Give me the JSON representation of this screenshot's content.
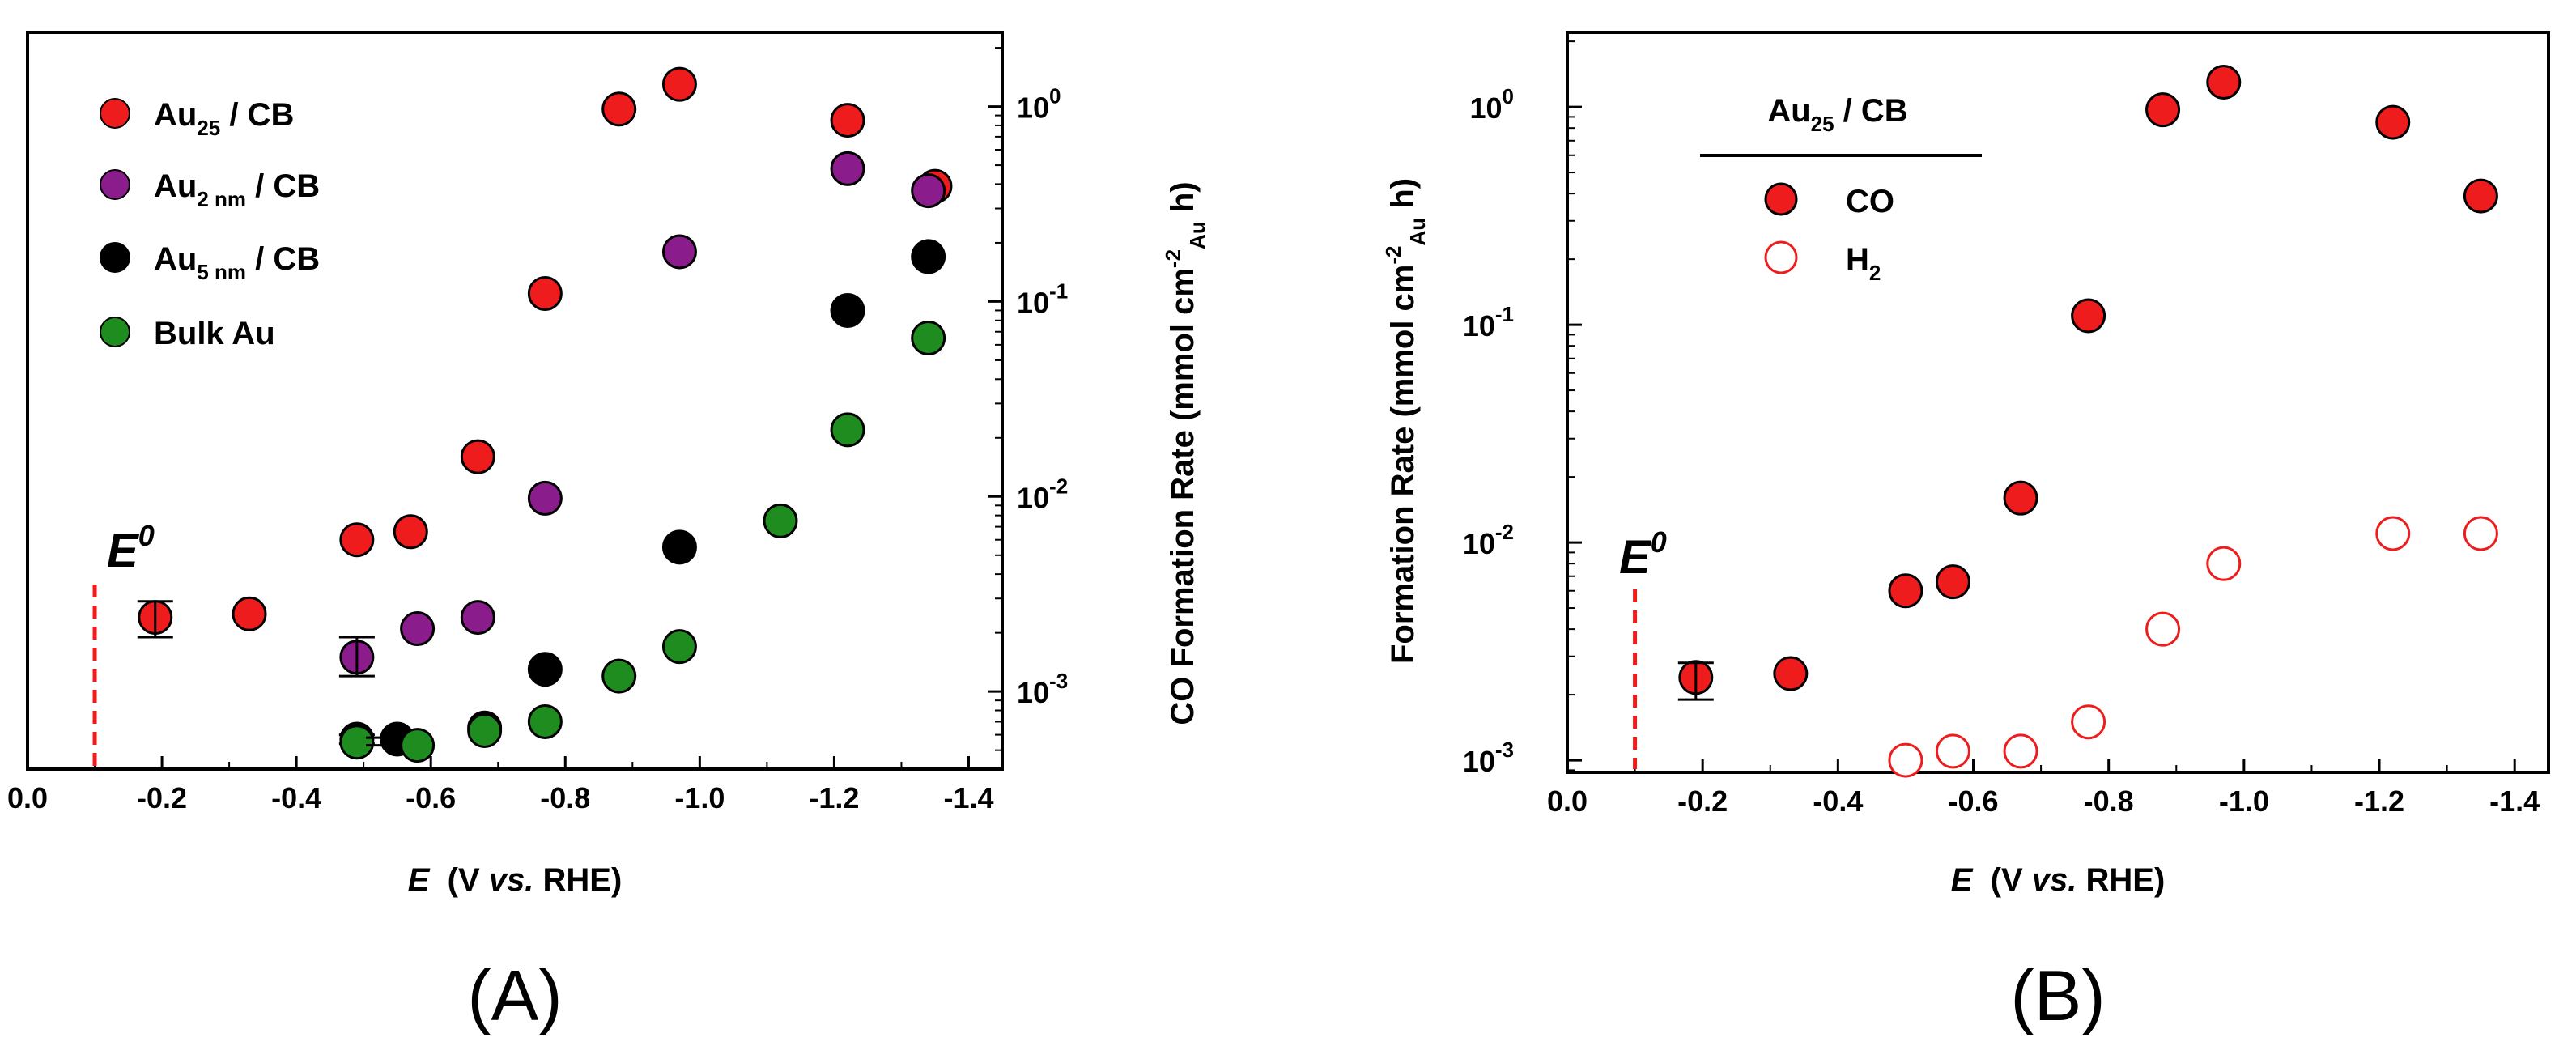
{
  "chart_data": [
    {
      "panel_label": "(A)",
      "type": "scatter",
      "xlabel_symbol": "E",
      "xlabel_rest": "(V ",
      "xlabel_vs": "vs.",
      "xlabel_end": " RHE)",
      "ylabel_right": "CO Formation Rate (mmol cm-2Au h)",
      "y_scale": "log",
      "xlim": [
        0.0,
        -1.45
      ],
      "ylim": [
        0.0004,
        2.4
      ],
      "x_ticks": [
        "0.0",
        "-0.2",
        "-0.4",
        "-0.6",
        "-0.8",
        "-1.0",
        "-1.2",
        "-1.4"
      ],
      "y_tick_labels": [
        {
          "base": "10",
          "exp": "-3",
          "value": 0.001
        },
        {
          "base": "10",
          "exp": "-2",
          "value": 0.01
        },
        {
          "base": "10",
          "exp": "-1",
          "value": 0.1
        },
        {
          "base": "10",
          "exp": "0",
          "value": 1
        }
      ],
      "e0_label": "E0",
      "e0_x": -0.1,
      "legend_location": "top-left",
      "series": [
        {
          "name": "Au25 / CB",
          "color": "#ee1c1c",
          "x": [
            -0.19,
            -0.33,
            -0.49,
            -0.57,
            -0.67,
            -0.77,
            -0.88,
            -0.97,
            -1.22,
            -1.35
          ],
          "y": [
            0.0024,
            0.0025,
            0.006,
            0.0066,
            0.016,
            0.11,
            0.97,
            1.3,
            0.85,
            0.39
          ],
          "error_points": [
            {
              "x": -0.19,
              "low": 0.0019,
              "high": 0.0029
            }
          ]
        },
        {
          "name": "Au2 nm / CB",
          "color": "#8a1c8c",
          "x": [
            -0.49,
            -0.58,
            -0.67,
            -0.77,
            -0.97,
            -1.22,
            -1.34
          ],
          "y": [
            0.0015,
            0.0021,
            0.0024,
            0.0098,
            0.18,
            0.48,
            0.37
          ],
          "error_points": [
            {
              "x": -0.49,
              "low": 0.0012,
              "high": 0.0019
            }
          ]
        },
        {
          "name": "Au5 nm / CB",
          "color": "#000000",
          "x": [
            -0.49,
            -0.55,
            -0.68,
            -0.77,
            -0.97,
            -1.22,
            -1.34
          ],
          "y": [
            0.00057,
            0.00057,
            0.00065,
            0.0013,
            0.0055,
            0.09,
            0.17
          ],
          "error_points": [
            {
              "x": -0.49,
              "low": 0.00054,
              "high": 0.0006
            }
          ]
        },
        {
          "name": "Bulk Au",
          "color": "#1e8c1e",
          "x": [
            -0.49,
            -0.58,
            -0.68,
            -0.77,
            -0.88,
            -0.97,
            -1.12,
            -1.22,
            -1.34
          ],
          "y": [
            0.00055,
            0.00053,
            0.00063,
            0.0007,
            0.0012,
            0.0017,
            0.0075,
            0.022,
            0.065
          ],
          "error_points": [
            {
              "x": -0.53,
              "low": 0.00053,
              "high": 0.00058
            }
          ]
        }
      ]
    },
    {
      "panel_label": "(B)",
      "type": "scatter",
      "xlabel_symbol": "E",
      "xlabel_rest": "(V ",
      "xlabel_vs": "vs.",
      "xlabel_end": " RHE)",
      "ylabel_left": "Formation Rate (mmol cm-2Au h)",
      "y_scale": "log",
      "xlim": [
        0.0,
        -1.45
      ],
      "ylim": [
        0.00088,
        2.2
      ],
      "x_ticks": [
        "0.0",
        "-0.2",
        "-0.4",
        "-0.6",
        "-0.8",
        "-1.0",
        "-1.2",
        "-1.4"
      ],
      "y_tick_labels": [
        {
          "base": "10",
          "exp": "-3",
          "value": 0.001
        },
        {
          "base": "10",
          "exp": "-2",
          "value": 0.01
        },
        {
          "base": "10",
          "exp": "-1",
          "value": 0.1
        },
        {
          "base": "10",
          "exp": "0",
          "value": 1
        }
      ],
      "e0_label": "E0",
      "e0_x": -0.1,
      "legend_title": "Au25 / CB",
      "legend_location": "top-left",
      "series": [
        {
          "name": "CO",
          "color": "#ee1c1c",
          "filled": true,
          "x": [
            -0.19,
            -0.33,
            -0.5,
            -0.57,
            -0.67,
            -0.77,
            -0.88,
            -0.97,
            -1.22,
            -1.35
          ],
          "y": [
            0.0024,
            0.0025,
            0.006,
            0.0066,
            0.016,
            0.11,
            0.97,
            1.3,
            0.85,
            0.39
          ],
          "error_points": [
            {
              "x": -0.19,
              "low": 0.0019,
              "high": 0.0028
            }
          ]
        },
        {
          "name": "H2",
          "color": "#ee1c1c",
          "filled": false,
          "x": [
            -0.5,
            -0.57,
            -0.67,
            -0.77,
            -0.88,
            -0.97,
            -1.22,
            -1.35
          ],
          "y": [
            0.001,
            0.0011,
            0.0011,
            0.0015,
            0.004,
            0.008,
            0.011,
            0.011
          ]
        }
      ]
    }
  ]
}
